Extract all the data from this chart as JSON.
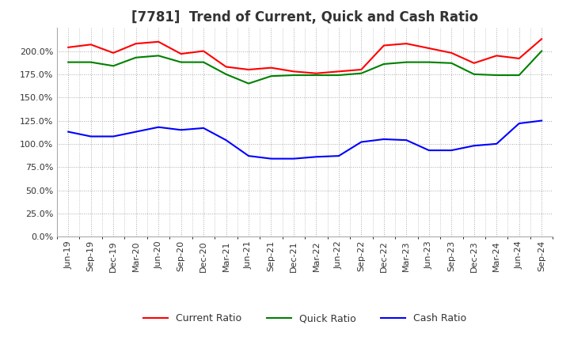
{
  "title": "[7781]  Trend of Current, Quick and Cash Ratio",
  "x_labels": [
    "Jun-19",
    "Sep-19",
    "Dec-19",
    "Mar-20",
    "Jun-20",
    "Sep-20",
    "Dec-20",
    "Mar-21",
    "Jun-21",
    "Sep-21",
    "Dec-21",
    "Mar-22",
    "Jun-22",
    "Sep-22",
    "Dec-22",
    "Mar-23",
    "Jun-23",
    "Sep-23",
    "Dec-23",
    "Mar-24",
    "Jun-24",
    "Sep-24"
  ],
  "current_ratio": [
    2.04,
    2.07,
    1.98,
    2.08,
    2.1,
    1.97,
    2.0,
    1.83,
    1.8,
    1.82,
    1.78,
    1.76,
    1.78,
    1.8,
    2.06,
    2.08,
    2.03,
    1.98,
    1.87,
    1.95,
    1.92,
    2.13
  ],
  "quick_ratio": [
    1.88,
    1.88,
    1.84,
    1.93,
    1.95,
    1.88,
    1.88,
    1.75,
    1.65,
    1.73,
    1.74,
    1.74,
    1.74,
    1.76,
    1.86,
    1.88,
    1.88,
    1.87,
    1.75,
    1.74,
    1.74,
    2.0
  ],
  "cash_ratio": [
    1.13,
    1.08,
    1.08,
    1.13,
    1.18,
    1.15,
    1.17,
    1.04,
    0.87,
    0.84,
    0.84,
    0.86,
    0.87,
    1.02,
    1.05,
    1.04,
    0.93,
    0.93,
    0.98,
    1.0,
    1.22,
    1.25
  ],
  "current_color": "#FF0000",
  "quick_color": "#008000",
  "cash_color": "#0000FF",
  "background_color": "#ffffff",
  "plot_bg_color": "#ffffff",
  "grid_color": "#aaaaaa",
  "ylim": [
    0.0,
    2.25
  ],
  "yticks": [
    0.0,
    0.25,
    0.5,
    0.75,
    1.0,
    1.25,
    1.5,
    1.75,
    2.0
  ],
  "title_fontsize": 12,
  "legend_fontsize": 9,
  "tick_fontsize": 8
}
